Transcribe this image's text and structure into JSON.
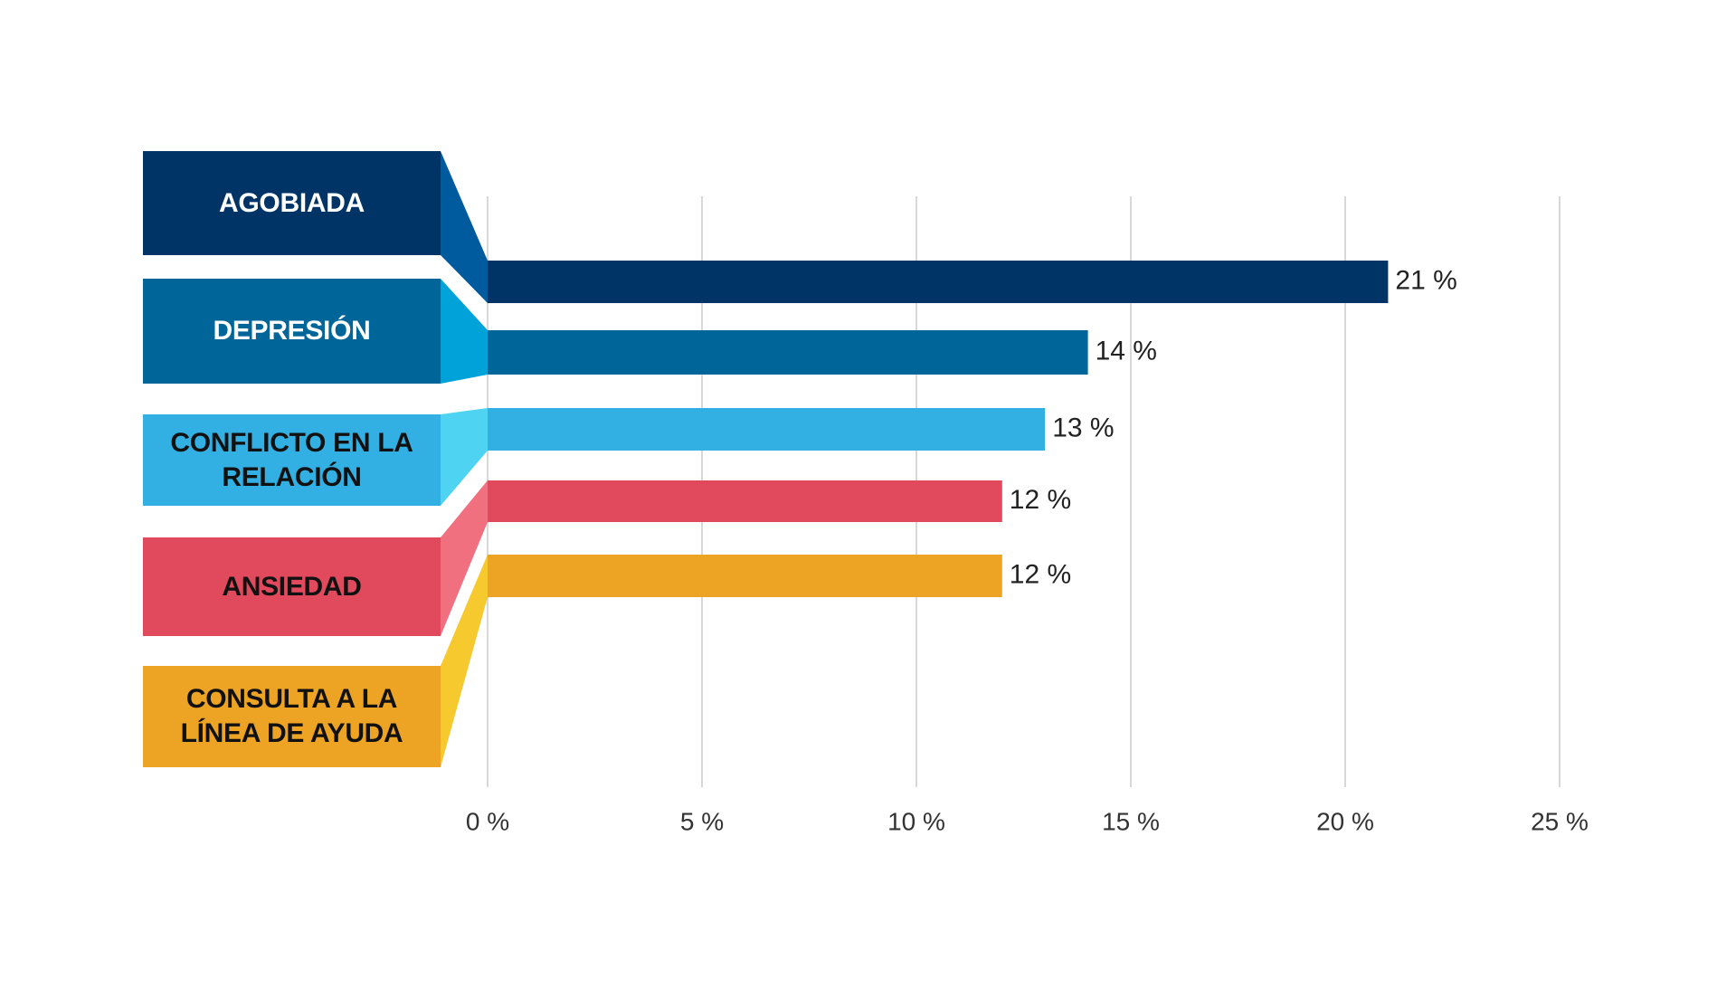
{
  "chart_data": {
    "type": "bar",
    "orientation": "horizontal",
    "categories": [
      "AGOBIADA",
      "DEPRESIÓN",
      "CONFLICTO EN LA RELACIÓN",
      "ANSIEDAD",
      "CONSULTA A LA LÍNEA DE AYUDA"
    ],
    "values": [
      21,
      14,
      13,
      12,
      12
    ],
    "value_labels": [
      "21 %",
      "14 %",
      "13 %",
      "12 %",
      "12 %"
    ],
    "colors": [
      "#003366",
      "#006699",
      "#33b0e3",
      "#e04a5c",
      "#eda424"
    ],
    "connector_colors": [
      "#005a9e",
      "#00a3d9",
      "#4fd3f2",
      "#f07080",
      "#f6c92f"
    ],
    "label_text_colors": [
      "#ffffff",
      "#ffffff",
      "#111111",
      "#111111",
      "#111111"
    ],
    "xlim": [
      0,
      25
    ],
    "xticks": [
      {
        "value": 0,
        "label": "0 %"
      },
      {
        "value": 5,
        "label": "5 %"
      },
      {
        "value": 10,
        "label": "10 %"
      },
      {
        "value": 15,
        "label": "15 %"
      },
      {
        "value": 20,
        "label": "20 %"
      },
      {
        "value": 25,
        "label": "25 %"
      }
    ],
    "grid": true
  }
}
